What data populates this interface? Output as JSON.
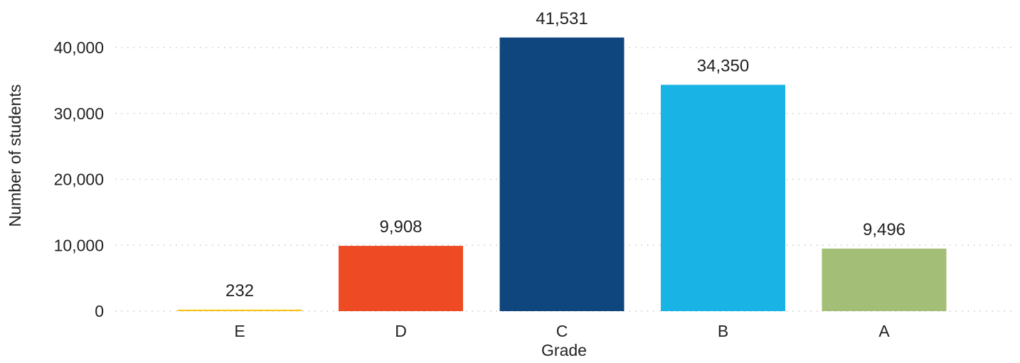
{
  "chart_data": {
    "type": "bar",
    "categories": [
      "E",
      "D",
      "C",
      "B",
      "A"
    ],
    "values": [
      232,
      9908,
      41531,
      34350,
      9496
    ],
    "value_labels": [
      "232",
      "9,908",
      "41,531",
      "34,350",
      "9,496"
    ],
    "colors": [
      "#f5c518",
      "#ee4a23",
      "#0f467d",
      "#1ab3e6",
      "#a3bf77"
    ],
    "title": "",
    "xlabel": "Grade",
    "ylabel": "Number of students",
    "ylim": [
      0,
      44000
    ],
    "yticks": [
      0,
      10000,
      20000,
      30000,
      40000
    ],
    "ytick_labels": [
      "0",
      "10,000",
      "20,000",
      "30,000",
      "40,000"
    ],
    "grid": "horizontal dotted",
    "legend": "none"
  }
}
